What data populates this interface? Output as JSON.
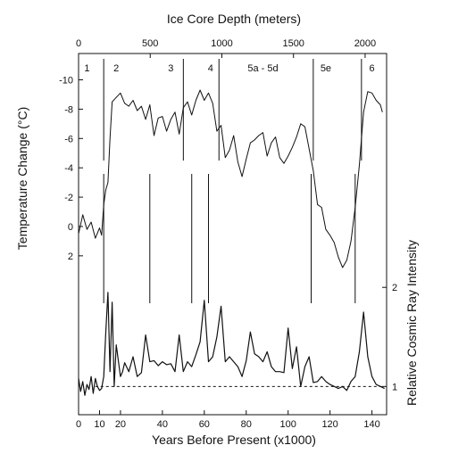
{
  "chart_data": {
    "type": "line",
    "top_axis": {
      "label": "Ice Core Depth (meters)",
      "range": [
        0,
        2150
      ],
      "ticks": [
        "0",
        "500",
        "1000",
        "1500",
        "2000"
      ],
      "tick_values": [
        0,
        500,
        1000,
        1500,
        2000
      ]
    },
    "x_axis": {
      "label": "Years Before Present (x1000)",
      "range": [
        0,
        147
      ],
      "ticks": [
        "0",
        "10",
        "20",
        "40",
        "60",
        "80",
        "100",
        "120",
        "140"
      ],
      "tick_values": [
        0,
        10,
        20,
        40,
        60,
        80,
        100,
        120,
        140
      ]
    },
    "left_axis": {
      "label": "Temperature Change (°C)",
      "range": [
        -10.7,
        2.8
      ],
      "inverted": true,
      "ticks": [
        "-10",
        "-8",
        "-6",
        "-4",
        "-2",
        "0",
        "2"
      ],
      "tick_values": [
        -10,
        -8,
        -6,
        -4,
        -2,
        0,
        2
      ]
    },
    "right_axis": {
      "label": "Relative Cosmic Ray Intensity",
      "range": [
        0.85,
        2.2
      ],
      "ticks": [
        "1",
        "2"
      ],
      "tick_values": [
        1,
        2
      ]
    },
    "zones": [
      {
        "label": "1",
        "x": 4
      },
      {
        "label": "2",
        "x": 18
      },
      {
        "label": "3",
        "x": 44
      },
      {
        "label": "4",
        "x": 63
      },
      {
        "label": "5a - 5d",
        "x": 88
      },
      {
        "label": "5e",
        "x": 118
      },
      {
        "label": "6",
        "x": 140
      }
    ],
    "zone_boundaries_top": [
      12,
      50,
      67,
      112,
      135
    ],
    "zone_boundaries_mid": [
      12,
      34,
      54,
      62,
      111,
      132
    ],
    "series": [
      {
        "axis": "left",
        "x": [
          0,
          2,
          4,
          6,
          8,
          10,
          11,
          12,
          13,
          14,
          15,
          16,
          18,
          20,
          22,
          24,
          26,
          28,
          30,
          32,
          34,
          36,
          38,
          40,
          42,
          44,
          46,
          48,
          50,
          52,
          54,
          56,
          58,
          60,
          62,
          64,
          66,
          68,
          70,
          72,
          74,
          76,
          78,
          80,
          82,
          84,
          86,
          88,
          90,
          92,
          94,
          96,
          98,
          100,
          102,
          104,
          106,
          108,
          110,
          112,
          114,
          116,
          118,
          120,
          122,
          124,
          126,
          128,
          130,
          132,
          134,
          136,
          138,
          140,
          142,
          144,
          145
        ],
        "y": [
          0.5,
          -0.8,
          0.2,
          -0.3,
          0.8,
          0.1,
          0.6,
          -1.5,
          -2.5,
          -3,
          -6,
          -8.5,
          -8.8,
          -9.1,
          -8.4,
          -8.2,
          -8.6,
          -7.9,
          -8.2,
          -7.3,
          -8.3,
          -6.2,
          -7.4,
          -7.5,
          -6.5,
          -7.3,
          -7.8,
          -6.3,
          -8.1,
          -8.5,
          -7.6,
          -8.6,
          -9.3,
          -8.6,
          -9.1,
          -8.4,
          -6.5,
          -6.9,
          -4.7,
          -5.2,
          -6.2,
          -4.4,
          -3.4,
          -4.6,
          -5.7,
          -5.9,
          -6.2,
          -6.4,
          -4.8,
          -5.7,
          -6.1,
          -4.7,
          -4.3,
          -4.8,
          -5.4,
          -6.1,
          -7,
          -6.8,
          -5.3,
          -3.8,
          -1.5,
          -1.3,
          0.2,
          0.6,
          1.1,
          2.1,
          2.8,
          2.3,
          1,
          -1.3,
          -4.2,
          -7.8,
          -9.2,
          -9.1,
          -8.6,
          -8.3,
          -7.8
        ]
      },
      {
        "axis": "right",
        "x": [
          0,
          1,
          2,
          3,
          4,
          5,
          6,
          7,
          8,
          9,
          10,
          11,
          12,
          13,
          14,
          15,
          16,
          17,
          18,
          20,
          21,
          22,
          24,
          26,
          28,
          30,
          32,
          34,
          36,
          38,
          40,
          42,
          44,
          46,
          48,
          50,
          52,
          54,
          56,
          58,
          60,
          62,
          64,
          66,
          68,
          70,
          72,
          74,
          76,
          78,
          80,
          82,
          84,
          86,
          88,
          90,
          92,
          94,
          96,
          98,
          100,
          102,
          104,
          106,
          108,
          110,
          112,
          114,
          116,
          118,
          120,
          122,
          124,
          126,
          128,
          130,
          132,
          134,
          136,
          138,
          140,
          142,
          144,
          146
        ],
        "y": [
          1.08,
          0.95,
          1.05,
          0.91,
          1.02,
          0.97,
          1.1,
          0.93,
          1.08,
          1.0,
          0.96,
          0.98,
          1.1,
          1.55,
          1.95,
          1.15,
          1.85,
          1.0,
          1.42,
          1.1,
          1.15,
          1.24,
          1.15,
          1.3,
          1.1,
          1.14,
          1.52,
          1.25,
          1.26,
          1.21,
          1.25,
          1.22,
          1.23,
          1.15,
          1.52,
          1.15,
          1.25,
          1.2,
          1.32,
          1.45,
          1.87,
          1.25,
          1.3,
          1.5,
          1.81,
          1.25,
          1.3,
          1.25,
          1.2,
          1.1,
          1.26,
          1.55,
          1.33,
          1.3,
          1.25,
          1.35,
          1.2,
          1.15,
          1.15,
          1.14,
          1.59,
          1.18,
          1.4,
          1.0,
          1.2,
          1.3,
          1.04,
          1.05,
          1.1,
          1.05,
          1.02,
          1.0,
          0.98,
          1.0,
          0.96,
          1.05,
          1.1,
          1.35,
          1.75,
          1.3,
          1.1,
          1.02,
          1.0,
          0.98
        ]
      }
    ],
    "reference_line": {
      "axis": "right",
      "y": 1,
      "style": "dashed"
    }
  }
}
